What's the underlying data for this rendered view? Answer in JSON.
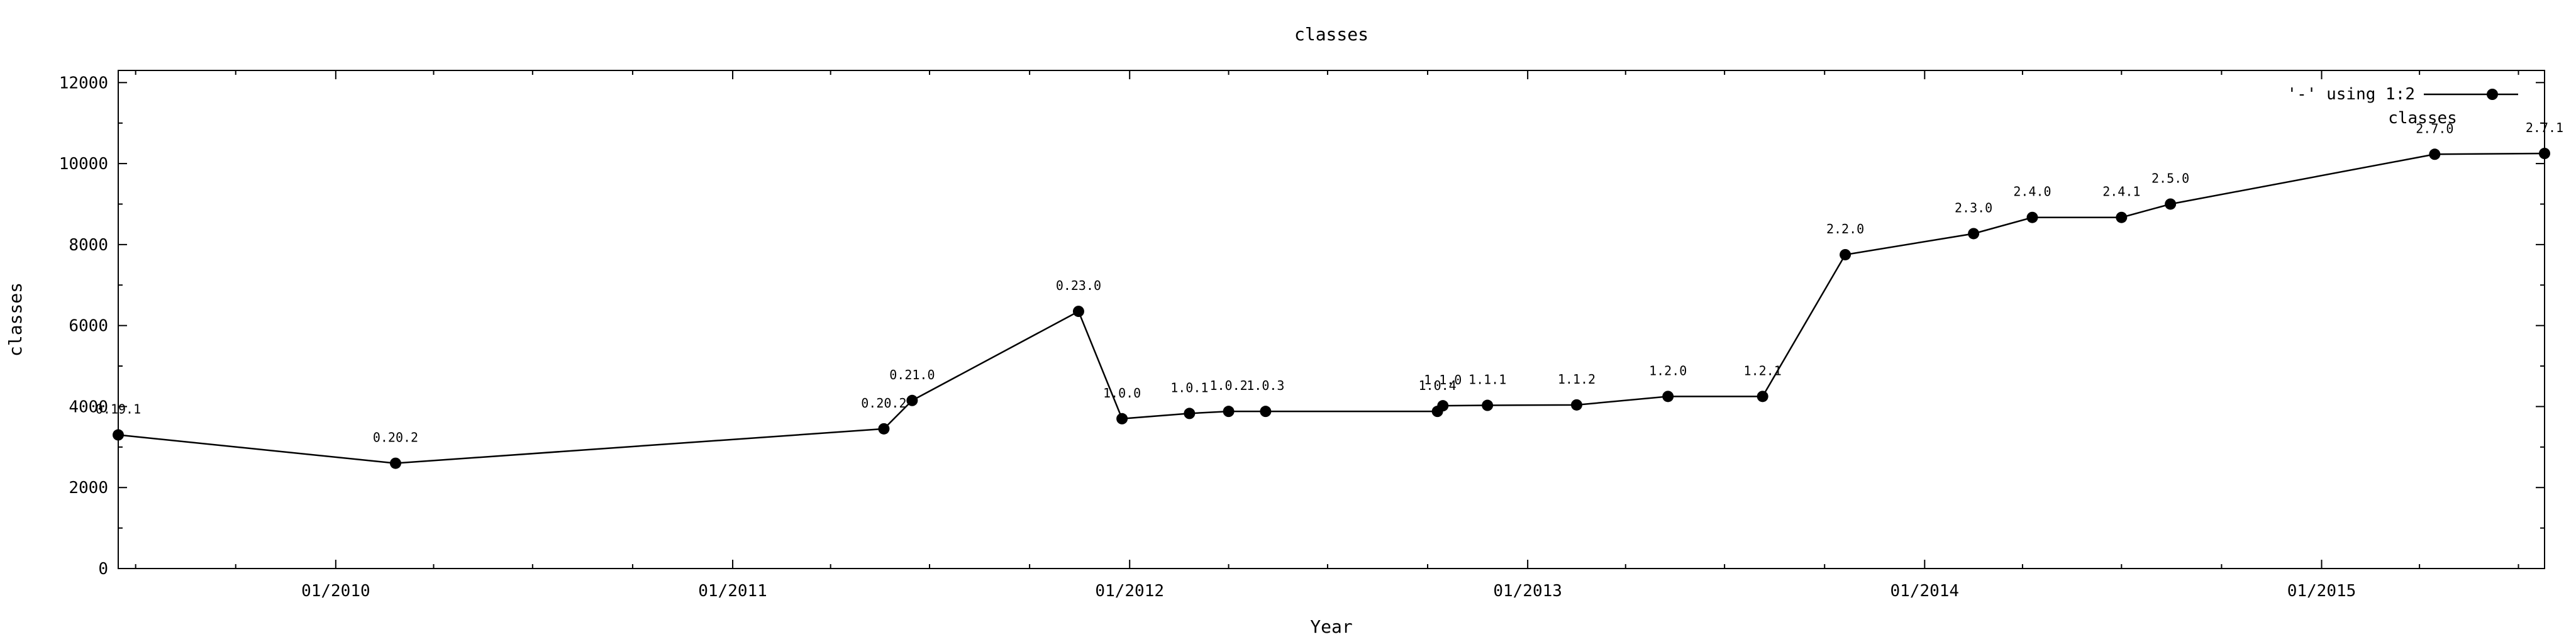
{
  "chart_data": {
    "type": "line",
    "title": "classes",
    "xlabel": "Year",
    "ylabel": "classes",
    "x_range": [
      "2009-06-15",
      "2015-07-25"
    ],
    "ylim": [
      0,
      12300
    ],
    "y_ticks": [
      0,
      2000,
      4000,
      6000,
      8000,
      10000,
      12000
    ],
    "y_tick_labels": [
      "0",
      "2000",
      "4000",
      "6000",
      "8000",
      "10000",
      "12000"
    ],
    "x_ticks": [
      "2010-01-01",
      "2011-01-01",
      "2012-01-01",
      "2013-01-01",
      "2014-01-01",
      "2015-01-01"
    ],
    "x_tick_labels": [
      "01/2010",
      "01/2011",
      "01/2012",
      "01/2013",
      "01/2014",
      "01/2015"
    ],
    "grid": false,
    "legend": {
      "placement": "top-right",
      "entry": "'-' using 1:2",
      "caption": "classes"
    },
    "series": [
      {
        "points": [
          {
            "x": "2009-06-15",
            "y": 3300,
            "label": "0.19.1"
          },
          {
            "x": "2010-02-25",
            "y": 2600,
            "label": "0.20.2"
          },
          {
            "x": "2011-05-20",
            "y": 3450,
            "label": "0.20.2"
          },
          {
            "x": "2011-06-15",
            "y": 4150,
            "label": "0.21.0"
          },
          {
            "x": "2011-11-15",
            "y": 6350,
            "label": "0.23.0"
          },
          {
            "x": "2011-12-25",
            "y": 3700,
            "label": "1.0.0"
          },
          {
            "x": "2012-02-25",
            "y": 3830,
            "label": "1.0.1"
          },
          {
            "x": "2012-04-01",
            "y": 3880,
            "label": "1.0.2"
          },
          {
            "x": "2012-05-05",
            "y": 3880,
            "label": "1.0.3"
          },
          {
            "x": "2012-10-10",
            "y": 3880,
            "label": "1.0.4"
          },
          {
            "x": "2012-10-15",
            "y": 4020,
            "label": "1.1.0"
          },
          {
            "x": "2012-11-25",
            "y": 4030,
            "label": "1.1.1"
          },
          {
            "x": "2013-02-15",
            "y": 4040,
            "label": "1.1.2"
          },
          {
            "x": "2013-05-10",
            "y": 4250,
            "label": "1.2.0"
          },
          {
            "x": "2013-08-05",
            "y": 4250,
            "label": "1.2.1"
          },
          {
            "x": "2013-10-20",
            "y": 7750,
            "label": "2.2.0"
          },
          {
            "x": "2014-02-15",
            "y": 8270,
            "label": "2.3.0"
          },
          {
            "x": "2014-04-10",
            "y": 8670,
            "label": "2.4.0"
          },
          {
            "x": "2014-07-01",
            "y": 8670,
            "label": "2.4.1"
          },
          {
            "x": "2014-08-15",
            "y": 9000,
            "label": "2.5.0"
          },
          {
            "x": "2015-04-15",
            "y": 10230,
            "label": "2.7.0"
          },
          {
            "x": "2015-07-25",
            "y": 10250,
            "label": "2.7.1"
          }
        ]
      }
    ]
  }
}
